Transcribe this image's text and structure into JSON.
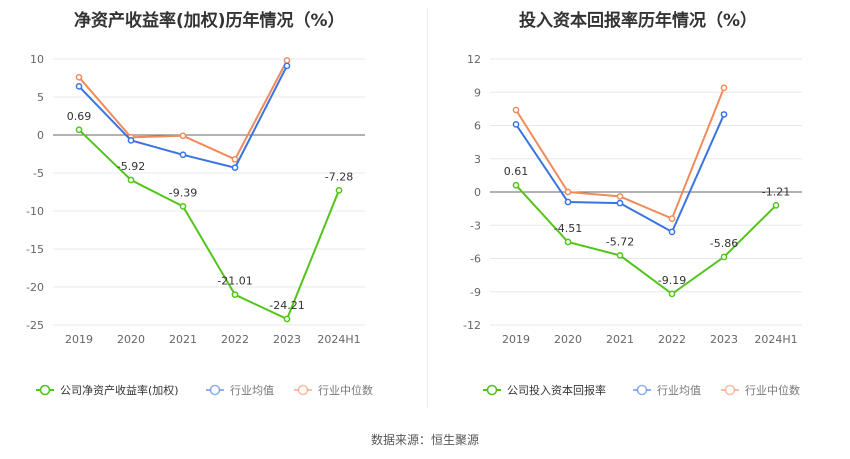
{
  "colors": {
    "company": "#52c41a",
    "avg": "#3a74e0",
    "median": "#f28b5c",
    "axis_text": "#666666",
    "grid": "#e8e8e8"
  },
  "footer": {
    "source": "数据来源：恒生聚源"
  },
  "chart_data": [
    {
      "type": "line",
      "title": "净资产收益率(加权)历年情况（%）",
      "categories": [
        "2019",
        "2020",
        "2021",
        "2022",
        "2023",
        "2024H1"
      ],
      "ylim": [
        -25,
        10
      ],
      "yticks": [
        10,
        5,
        0,
        -5,
        -10,
        -15,
        -20,
        -25
      ],
      "grid": true,
      "legend_position": "bottom",
      "series": [
        {
          "name": "公司净资产收益率(加权)",
          "color": "#52c41a",
          "labels": true,
          "values": [
            0.69,
            -5.92,
            -9.39,
            -21.01,
            -24.21,
            -7.28
          ]
        },
        {
          "name": "行业均值",
          "color": "#3a74e0",
          "labels": false,
          "values": [
            6.4,
            -0.7,
            -2.6,
            -4.3,
            9.1,
            null
          ]
        },
        {
          "name": "行业中位数",
          "color": "#f28b5c",
          "labels": false,
          "values": [
            7.6,
            -0.3,
            -0.1,
            -3.2,
            9.8,
            null
          ]
        }
      ]
    },
    {
      "type": "line",
      "title": "投入资本回报率历年情况（%）",
      "categories": [
        "2019",
        "2020",
        "2021",
        "2022",
        "2023",
        "2024H1"
      ],
      "ylim": [
        -12,
        12
      ],
      "yticks": [
        12,
        9,
        6,
        3,
        0,
        -3,
        -6,
        -9,
        -12
      ],
      "grid": true,
      "legend_position": "bottom",
      "series": [
        {
          "name": "公司投入资本回报率",
          "color": "#52c41a",
          "labels": true,
          "values": [
            0.61,
            -4.51,
            -5.72,
            -9.19,
            -5.86,
            -1.21
          ]
        },
        {
          "name": "行业均值",
          "color": "#3a74e0",
          "labels": false,
          "values": [
            6.1,
            -0.9,
            -1.0,
            -3.6,
            7.0,
            null
          ]
        },
        {
          "name": "行业中位数",
          "color": "#f28b5c",
          "labels": false,
          "values": [
            7.4,
            0.0,
            -0.4,
            -2.4,
            9.4,
            null
          ]
        }
      ]
    }
  ]
}
